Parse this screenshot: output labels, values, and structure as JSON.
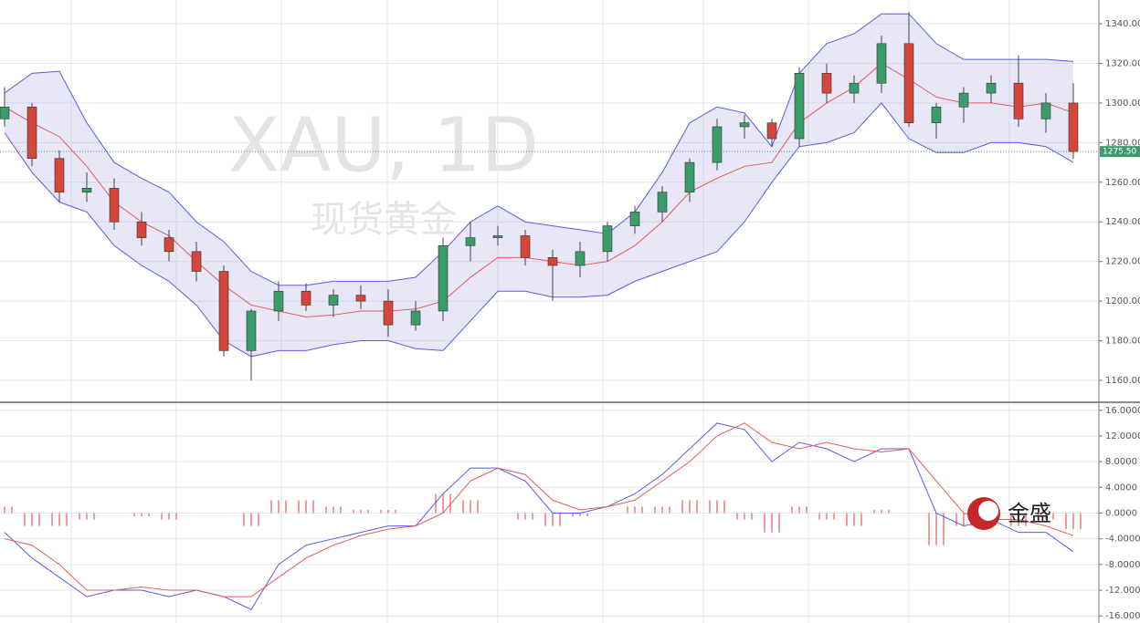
{
  "logo": "金盛",
  "chart_data": [
    {
      "type": "candlestick",
      "title": "XAU, 1D",
      "subtitle": "现货黄金",
      "ylim": [
        1149.4,
        1352
      ],
      "yticks": [
        {
          "value": 1160,
          "label": "1160.00"
        },
        {
          "value": 1180,
          "label": "1180.00"
        },
        {
          "value": 1200,
          "label": "1200.00"
        },
        {
          "value": 1220,
          "label": "1220.00"
        },
        {
          "value": 1240,
          "label": "1240.00"
        },
        {
          "value": 1260,
          "label": "1260.00"
        },
        {
          "value": 1280,
          "label": "1280.00"
        },
        {
          "value": 1300,
          "label": "1300.00"
        },
        {
          "value": 1320,
          "label": "1320.00"
        },
        {
          "value": 1340,
          "label": "1340.00"
        }
      ],
      "grid": true,
      "up_color": "#3c9b6b",
      "down_color": "#d2473a",
      "band_color": "#5b5bea",
      "middle_color": "#e85a5a",
      "last_price": {
        "value": 1275.5,
        "label": "1275.50"
      },
      "open": [
        1292,
        1298,
        1272,
        1255,
        1257,
        1240,
        1232,
        1225,
        1215,
        1175,
        1195,
        1205,
        1198,
        1203,
        1200,
        1188,
        1195,
        1228,
        1232,
        1233,
        1222,
        1218,
        1225,
        1238,
        1245,
        1255,
        1270,
        1288,
        1290,
        1282,
        1315,
        1305,
        1310,
        1330,
        1290,
        1298,
        1305,
        1310,
        1292,
        1300
      ],
      "high": [
        1308,
        1300,
        1276,
        1265,
        1262,
        1245,
        1236,
        1230,
        1218,
        1196,
        1210,
        1209,
        1206,
        1208,
        1206,
        1200,
        1232,
        1240,
        1238,
        1236,
        1226,
        1230,
        1240,
        1248,
        1258,
        1272,
        1292,
        1294,
        1292,
        1318,
        1320,
        1314,
        1334,
        1346,
        1300,
        1308,
        1314,
        1324,
        1305,
        1310
      ],
      "low": [
        1288,
        1268,
        1250,
        1250,
        1236,
        1228,
        1220,
        1210,
        1172,
        1160,
        1190,
        1195,
        1192,
        1196,
        1182,
        1185,
        1190,
        1220,
        1228,
        1218,
        1200,
        1212,
        1220,
        1234,
        1240,
        1250,
        1266,
        1282,
        1278,
        1278,
        1300,
        1300,
        1305,
        1288,
        1282,
        1290,
        1300,
        1288,
        1285,
        1272
      ],
      "close": [
        1298,
        1272,
        1255,
        1257,
        1240,
        1232,
        1225,
        1215,
        1175,
        1195,
        1205,
        1198,
        1203,
        1200,
        1188,
        1195,
        1228,
        1232,
        1233,
        1222,
        1218,
        1225,
        1238,
        1245,
        1255,
        1270,
        1288,
        1290,
        1282,
        1315,
        1305,
        1310,
        1330,
        1290,
        1298,
        1305,
        1310,
        1292,
        1300,
        1275.5
      ],
      "bands": {
        "upper": [
          1305,
          1315,
          1316,
          1290,
          1270,
          1262,
          1255,
          1240,
          1230,
          1215,
          1208,
          1208,
          1210,
          1210,
          1210,
          1212,
          1225,
          1240,
          1248,
          1240,
          1238,
          1236,
          1234,
          1245,
          1265,
          1290,
          1298,
          1295,
          1278,
          1315,
          1330,
          1335,
          1345,
          1345,
          1330,
          1322,
          1322,
          1322,
          1322,
          1321
        ],
        "middle": [
          1298,
          1290,
          1283,
          1268,
          1250,
          1240,
          1233,
          1220,
          1208,
          1198,
          1195,
          1192,
          1193,
          1195,
          1195,
          1196,
          1200,
          1212,
          1222,
          1222,
          1220,
          1218,
          1220,
          1228,
          1240,
          1255,
          1262,
          1268,
          1270,
          1290,
          1300,
          1308,
          1320,
          1312,
          1303,
          1300,
          1300,
          1298,
          1300,
          1295
        ],
        "lower": [
          1285,
          1265,
          1250,
          1245,
          1228,
          1218,
          1210,
          1198,
          1180,
          1172,
          1175,
          1175,
          1178,
          1180,
          1180,
          1176,
          1175,
          1190,
          1205,
          1205,
          1202,
          1202,
          1203,
          1210,
          1215,
          1220,
          1225,
          1240,
          1260,
          1278,
          1280,
          1285,
          1300,
          1282,
          1275,
          1275,
          1280,
          1280,
          1278,
          1270
        ]
      }
    },
    {
      "type": "macd",
      "ylim": [
        -17.1,
        17.1
      ],
      "yticks": [
        {
          "value": -16,
          "label": "-16.0000"
        },
        {
          "value": -12,
          "label": "-12.0000"
        },
        {
          "value": -8,
          "label": "-8.0000"
        },
        {
          "value": -4,
          "label": "-4.0000"
        },
        {
          "value": 0,
          "label": "0.0000"
        },
        {
          "value": 4,
          "label": "4.0000"
        },
        {
          "value": 8,
          "label": "8.0000"
        },
        {
          "value": 12,
          "label": "12.0000"
        },
        {
          "value": 16,
          "label": "16.0000"
        }
      ],
      "grid": true,
      "macd_color": "#5b5bea",
      "signal_color": "#e85a5a",
      "histogram_color": "#ec7b7b",
      "macd": [
        -3,
        -7,
        -10,
        -13,
        -12,
        -12,
        -13,
        -12,
        -13,
        -15,
        -8,
        -5,
        -4,
        -3,
        -2,
        -2,
        3,
        7,
        7,
        5,
        0,
        0,
        1,
        3,
        6,
        10,
        14,
        13,
        8,
        11,
        10,
        8,
        10,
        10,
        0,
        -2,
        -1,
        -3,
        -3,
        -6
      ],
      "signal": [
        -4,
        -5,
        -8,
        -12,
        -12,
        -11.5,
        -12,
        -12,
        -13,
        -13,
        -10,
        -7,
        -5,
        -3.5,
        -2.5,
        -2,
        0,
        5,
        7,
        6,
        2,
        0.5,
        1,
        2,
        5,
        8,
        12,
        14,
        11,
        10,
        11,
        10,
        9.5,
        10,
        5,
        0,
        -1,
        -1,
        -2,
        -3.5
      ],
      "histogram": [
        1,
        -2,
        -2,
        -1,
        0,
        -0.5,
        -1,
        0,
        0,
        -2,
        2,
        2,
        1,
        0.5,
        0.5,
        0,
        3,
        2,
        0,
        -1,
        -2,
        -0.5,
        0,
        1,
        1,
        2,
        2,
        -1,
        -3,
        1,
        -1,
        -2,
        0.5,
        0,
        -5,
        -2,
        0,
        -2,
        -1,
        -2.5
      ]
    }
  ]
}
